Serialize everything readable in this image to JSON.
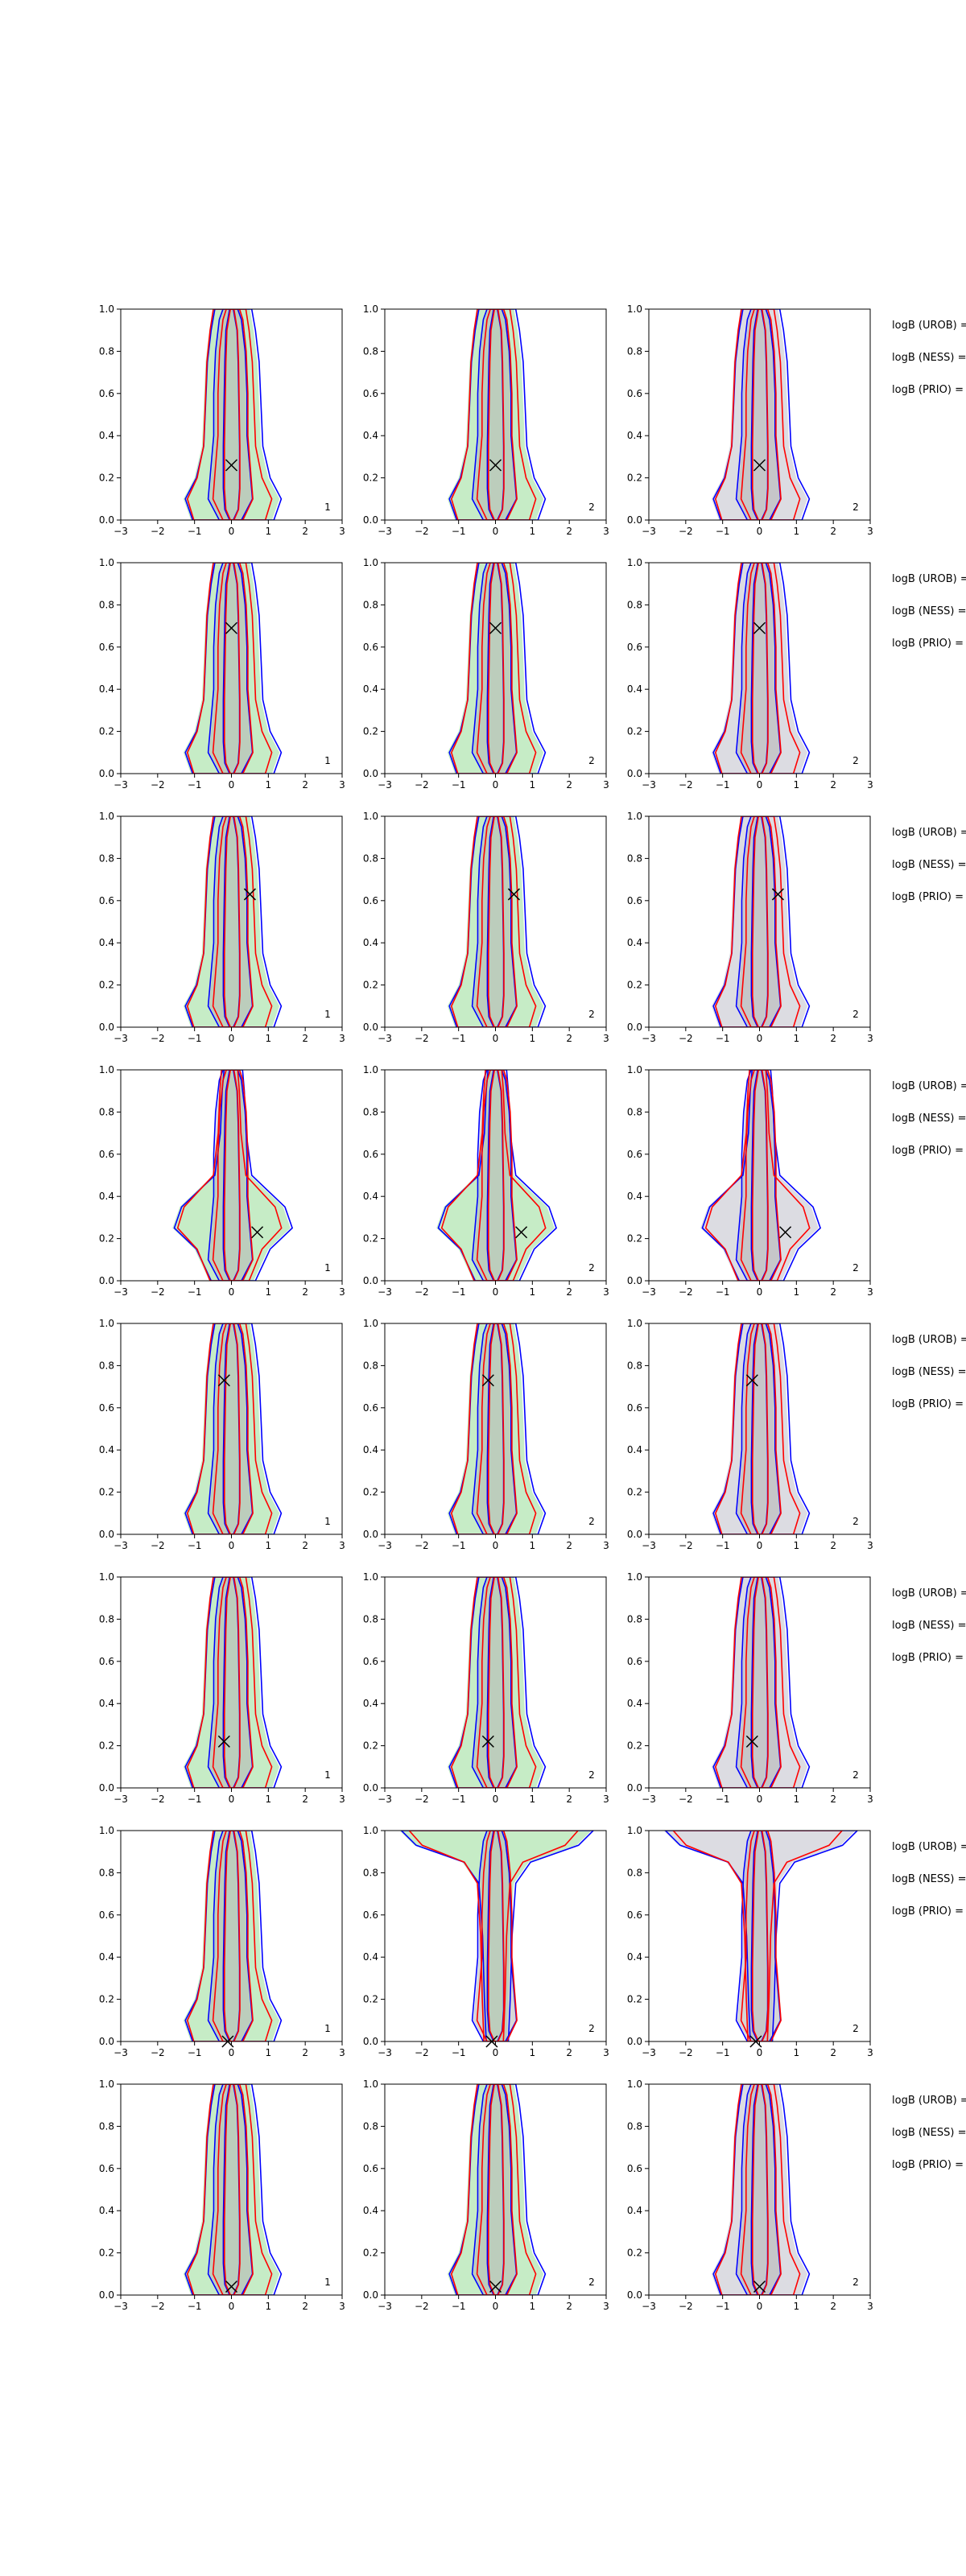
{
  "figure": {
    "background": "#ffffff",
    "colors": {
      "blue": "#0000ff",
      "red": "#ff0000",
      "green_fill": "#c6ecc6",
      "gray_fill": "#dcdce2",
      "dark_fill": "#b4b4b4",
      "axis": "#000000"
    }
  },
  "chart_data": {
    "type": "contour-grid",
    "rows": 8,
    "columns": 3,
    "xlim": [
      -3,
      3
    ],
    "ylim": [
      0.0,
      1.0
    ],
    "x_ticks": [
      -3,
      -2,
      -1,
      0,
      1,
      2,
      3
    ],
    "y_ticks": [
      "0.0",
      "0.2",
      "0.4",
      "0.6",
      "0.8",
      "1.0"
    ],
    "panel_labels": [
      "1",
      "2",
      "2"
    ],
    "side_labels": [
      "logB (UROB) =",
      "logB (NESS) =",
      "logB (PRIO) ="
    ],
    "markers": [
      {
        "x": 0.0,
        "y": 0.26
      },
      {
        "x": 0.0,
        "y": 0.69
      },
      {
        "x": 0.5,
        "y": 0.63
      },
      {
        "x": 0.7,
        "y": 0.23
      },
      {
        "x": -0.2,
        "y": 0.73
      },
      {
        "x": -0.2,
        "y": 0.22
      },
      {
        "x": -0.1,
        "y": 0.0
      },
      {
        "x": 0.0,
        "y": 0.04
      }
    ],
    "columns_info": [
      {
        "fill": "green_fill"
      },
      {
        "fill": "green_fill"
      },
      {
        "fill": "gray_fill"
      }
    ]
  }
}
